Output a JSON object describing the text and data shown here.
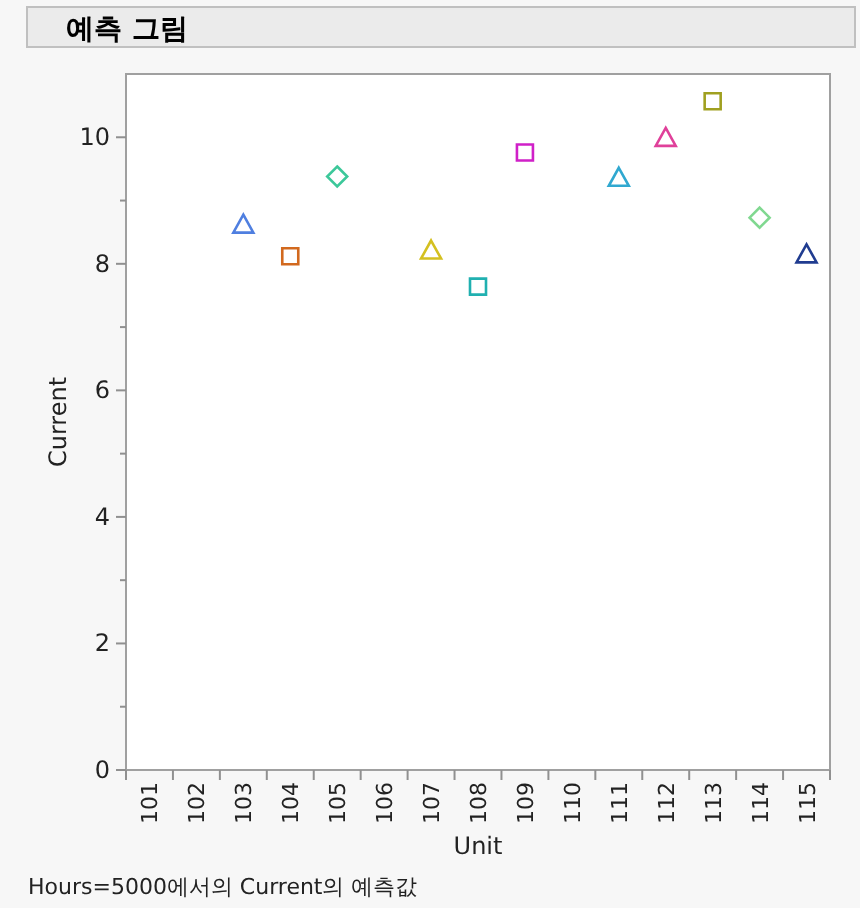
{
  "chart_data": {
    "type": "scatter",
    "title": "예측 그림",
    "xlabel": "Unit",
    "ylabel": "Current",
    "annotations": [
      "Hours=5000에서의 Current의 예측값"
    ],
    "categories": [
      "101",
      "102",
      "103",
      "104",
      "105",
      "106",
      "107",
      "108",
      "109",
      "110",
      "111",
      "112",
      "113",
      "114",
      "115"
    ],
    "ylim": [
      0,
      11
    ],
    "yticks": [
      0,
      2,
      4,
      6,
      8,
      10
    ],
    "grid": false,
    "series": [
      {
        "color": "#4f7fe0",
        "marker": "triangle",
        "values": [
          null,
          null,
          8.62,
          null,
          null,
          null,
          null,
          null,
          null,
          null,
          null,
          null,
          null,
          null,
          null
        ]
      },
      {
        "color": "#d2691e",
        "marker": "square",
        "values": [
          null,
          null,
          null,
          8.12,
          null,
          null,
          null,
          null,
          null,
          null,
          null,
          null,
          null,
          null,
          null
        ]
      },
      {
        "color": "#3cc89a",
        "marker": "diamond",
        "values": [
          null,
          null,
          null,
          null,
          9.38,
          null,
          null,
          null,
          null,
          null,
          null,
          null,
          null,
          null,
          null
        ]
      },
      {
        "color": "#d4c020",
        "marker": "triangle",
        "values": [
          null,
          null,
          null,
          null,
          null,
          null,
          8.21,
          null,
          null,
          null,
          null,
          null,
          null,
          null,
          null
        ]
      },
      {
        "color": "#20b0b0",
        "marker": "square",
        "values": [
          null,
          null,
          null,
          null,
          null,
          null,
          null,
          7.64,
          null,
          null,
          null,
          null,
          null,
          null,
          null
        ]
      },
      {
        "color": "#d020c8",
        "marker": "square",
        "values": [
          null,
          null,
          null,
          null,
          null,
          null,
          null,
          null,
          9.76,
          null,
          null,
          null,
          null,
          null,
          null
        ]
      },
      {
        "color": "#30a8d0",
        "marker": "triangle",
        "values": [
          null,
          null,
          null,
          null,
          null,
          null,
          null,
          null,
          null,
          null,
          9.36,
          null,
          null,
          null,
          null
        ]
      },
      {
        "color": "#e0409a",
        "marker": "triangle",
        "values": [
          null,
          null,
          null,
          null,
          null,
          null,
          null,
          null,
          null,
          null,
          null,
          9.99,
          null,
          null,
          null
        ]
      },
      {
        "color": "#a0a020",
        "marker": "square",
        "values": [
          null,
          null,
          null,
          null,
          null,
          null,
          null,
          null,
          null,
          null,
          null,
          null,
          10.57,
          null,
          null
        ]
      },
      {
        "color": "#80d890",
        "marker": "diamond",
        "values": [
          null,
          null,
          null,
          null,
          null,
          null,
          null,
          null,
          null,
          null,
          null,
          null,
          null,
          8.73,
          null
        ]
      },
      {
        "color": "#203c90",
        "marker": "triangle",
        "values": [
          null,
          null,
          null,
          null,
          null,
          null,
          null,
          null,
          null,
          null,
          null,
          null,
          null,
          null,
          8.15
        ]
      }
    ]
  }
}
